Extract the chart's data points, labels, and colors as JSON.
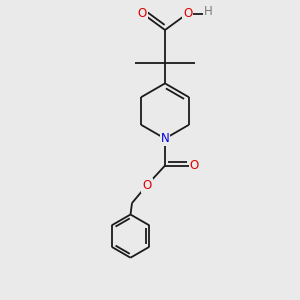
{
  "bg_color": "#eaeaea",
  "bond_color": "#1a1a1a",
  "bond_lw": 1.3,
  "atom_colors": {
    "O": "#e00000",
    "N": "#0000e0",
    "H": "#7a7a7a",
    "C": "#1a1a1a"
  },
  "font_size": 8.5,
  "fig_size": [
    3.0,
    3.0
  ],
  "dpi": 100,
  "xlim": [
    0,
    10
  ],
  "ylim": [
    0,
    10
  ]
}
